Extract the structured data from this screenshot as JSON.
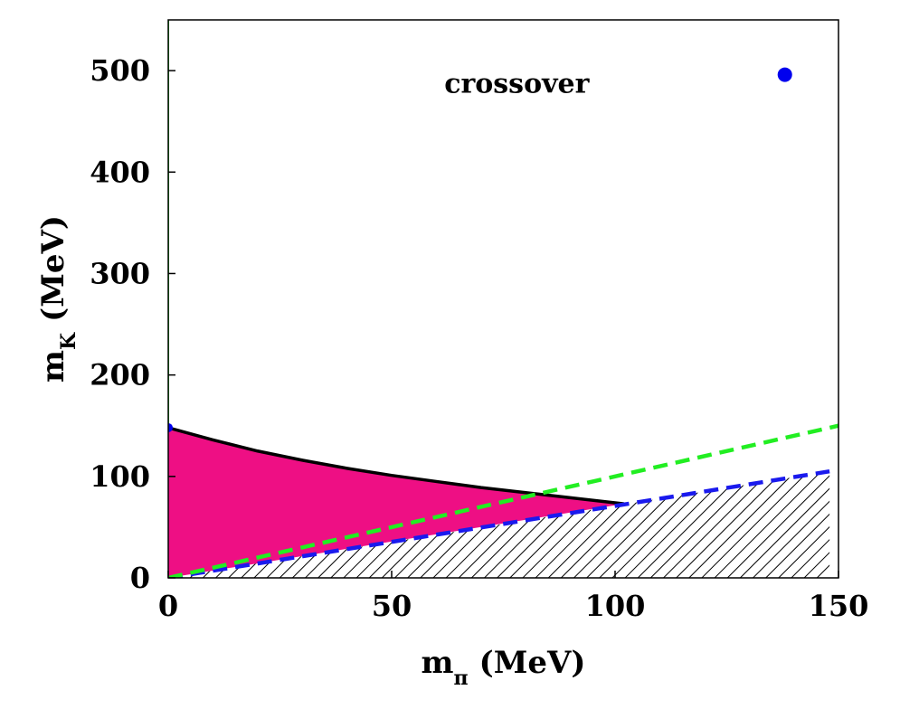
{
  "chart_data": {
    "type": "area",
    "xlabel": {
      "main": "m",
      "sub": "π",
      "unit": "(MeV)"
    },
    "ylabel": {
      "main": "m",
      "sub": "K",
      "unit": "(MeV)"
    },
    "xlim": [
      0,
      150
    ],
    "ylim": [
      0,
      550
    ],
    "xticks": [
      0,
      50,
      100,
      150
    ],
    "yticks": [
      0,
      100,
      200,
      300,
      400,
      500
    ],
    "grid": false,
    "annotations": [
      {
        "text": "crossover",
        "x": 78,
        "y": 487
      }
    ],
    "regions": [
      {
        "fill": "#ee0f84",
        "upper_curve": {
          "x": [
            0,
            10,
            20,
            30,
            40,
            50,
            60,
            70,
            80,
            90,
            100,
            102
          ],
          "y": [
            148,
            136,
            125,
            116,
            108,
            101,
            95,
            89,
            84,
            79,
            74,
            73
          ]
        },
        "lower_curve": {
          "x": [
            0,
            102
          ],
          "y": [
            0,
            73
          ]
        }
      },
      {
        "fill": "hatched",
        "boundary": {
          "x": [
            0,
            148,
            148
          ],
          "y": [
            0,
            105,
            0
          ]
        }
      }
    ],
    "series": [
      {
        "style": "solid",
        "color": "#000000",
        "x": [
          0,
          10,
          20,
          30,
          40,
          50,
          60,
          70,
          80,
          90,
          100,
          102
        ],
        "y": [
          148,
          136,
          125,
          116,
          108,
          101,
          95,
          89,
          84,
          79,
          74,
          73
        ]
      },
      {
        "style": "dashed",
        "color": "#1a1aee",
        "x": [
          0,
          148
        ],
        "y": [
          0,
          105
        ]
      },
      {
        "style": "dashed",
        "color": "#22ee22",
        "x": [
          0,
          150
        ],
        "y": [
          0,
          150
        ]
      },
      {
        "style": "solid",
        "color": "#22ee22",
        "x": [
          0,
          0
        ],
        "y": [
          148,
          550
        ]
      },
      {
        "style": "solid",
        "color": "#ee0f84",
        "x": [
          0,
          0
        ],
        "y": [
          0,
          148
        ]
      }
    ],
    "points": [
      {
        "x": 138,
        "y": 496,
        "color": "#0000ee",
        "size": "large"
      },
      {
        "x": 0,
        "y": 148,
        "color": "#0000ee",
        "size": "small"
      }
    ]
  }
}
